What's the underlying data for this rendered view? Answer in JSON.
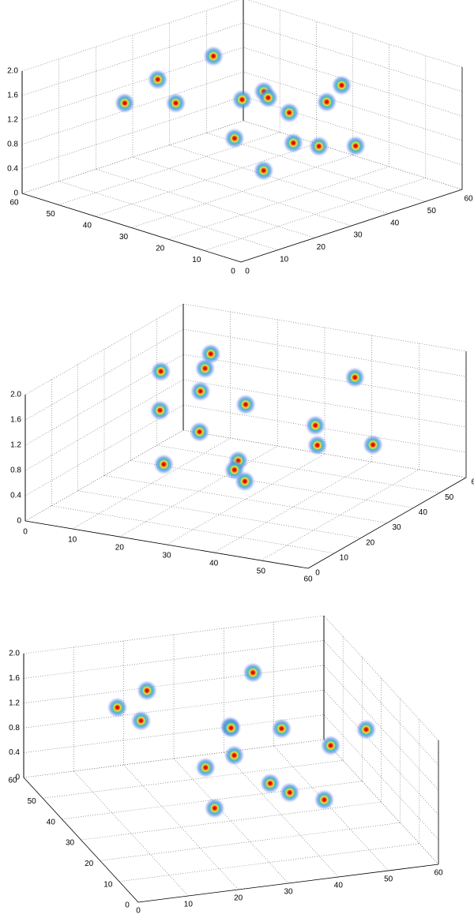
{
  "chart_data": [
    {
      "type": "scatter3d",
      "xlim": [
        0,
        60
      ],
      "ylim": [
        0,
        60
      ],
      "zlim": [
        0,
        2
      ],
      "xticks": [
        0,
        10,
        20,
        30,
        40,
        50,
        60
      ],
      "yticks": [
        0,
        10,
        20,
        30,
        40,
        50,
        60
      ],
      "zticks": [
        0,
        0.4,
        0.8,
        1.2,
        1.6,
        {
          "value": 2,
          "label": "2.0"
        }
      ],
      "grid": true,
      "x": [
        17,
        12,
        13,
        26,
        23,
        30,
        42,
        42,
        57,
        48,
        34,
        36,
        23,
        21,
        41
      ],
      "y": [
        40,
        30,
        45,
        20,
        10,
        30,
        50,
        35,
        30,
        25,
        20,
        15,
        25,
        15,
        10
      ],
      "z": [
        1.9,
        1.8,
        1.5,
        1.9,
        1.8,
        1.5,
        1.6,
        1.2,
        1.2,
        1.2,
        0.9,
        0.9,
        1.1,
        0.8,
        0.9
      ]
    },
    {
      "type": "scatter3d",
      "xlim": [
        0,
        60
      ],
      "ylim": [
        0,
        60
      ],
      "zlim": [
        0,
        2
      ],
      "xticks": [
        0,
        10,
        20,
        30,
        40,
        50,
        60
      ],
      "yticks": [
        0,
        10,
        20,
        30,
        40,
        50,
        60
      ],
      "zticks": [
        0,
        0.4,
        0.8,
        1.2,
        1.6,
        {
          "value": 2,
          "label": "2.0"
        }
      ],
      "grid": true,
      "x": [
        17,
        12,
        13,
        26,
        23,
        30,
        42,
        42,
        57,
        48,
        34,
        36,
        23,
        21,
        41
      ],
      "y": [
        40,
        30,
        45,
        20,
        10,
        30,
        50,
        35,
        30,
        25,
        20,
        15,
        25,
        15,
        10
      ],
      "z": [
        1.9,
        1.8,
        1.5,
        1.9,
        1.8,
        1.5,
        1.6,
        1.2,
        1.2,
        1.2,
        0.9,
        0.9,
        1.1,
        0.8,
        0.9
      ]
    },
    {
      "type": "scatter3d",
      "xlim": [
        0,
        60
      ],
      "ylim": [
        0,
        60
      ],
      "zlim": [
        0,
        2
      ],
      "xticks": [
        0,
        10,
        20,
        30,
        40,
        50,
        60
      ],
      "yticks": [
        0,
        10,
        20,
        30,
        40,
        50,
        60
      ],
      "zticks": [
        0,
        0.4,
        0.8,
        1.2,
        1.6,
        {
          "value": 2,
          "label": "2.0"
        }
      ],
      "grid": true,
      "x": [
        17,
        12,
        13,
        26,
        23,
        30,
        42,
        42,
        57,
        48,
        34,
        36,
        23,
        21,
        41
      ],
      "y": [
        40,
        30,
        45,
        20,
        10,
        30,
        50,
        35,
        30,
        25,
        20,
        15,
        25,
        15,
        10
      ],
      "z": [
        1.9,
        1.8,
        1.5,
        1.9,
        1.8,
        1.5,
        1.6,
        1.2,
        1.2,
        1.2,
        0.9,
        0.9,
        1.1,
        0.8,
        0.9
      ]
    }
  ]
}
